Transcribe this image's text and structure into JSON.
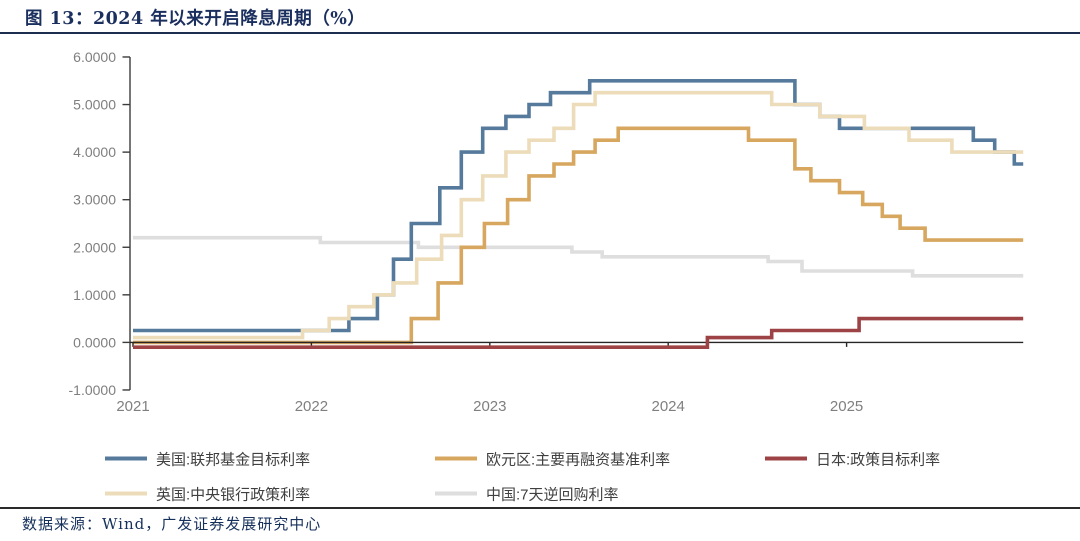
{
  "header": {
    "title": "图 13：2024 年以来开启降息周期（%）"
  },
  "footer": {
    "source": "数据来源：Wind，广发证券发展研究中心"
  },
  "chart_data": {
    "type": "line",
    "step": true,
    "title": "图 13：2024 年以来开启降息周期（%）",
    "ylabel": "",
    "xlabel": "",
    "ylim": [
      -1.0,
      6.0
    ],
    "x_range": [
      2021.0,
      2025.99
    ],
    "x_end": 2025.99,
    "grid": false,
    "legend_position": "bottom",
    "y_tick_values": [
      6,
      5,
      4,
      3,
      2,
      1,
      0,
      -1
    ],
    "y_tick_labels": [
      "6.0000",
      "5.0000",
      "4.0000",
      "3.0000",
      "2.0000",
      "1.0000",
      "0.0000",
      "-1.0000"
    ],
    "x_tick_values": [
      2021,
      2022,
      2023,
      2024,
      2025
    ],
    "x_tick_labels": [
      "2021",
      "2022",
      "2023",
      "2024",
      "2025"
    ],
    "series": [
      {
        "key": "cn",
        "name": "中国:7天逆回购利率",
        "color": "#dedede",
        "points": [
          [
            2021.0,
            2.2
          ],
          [
            2022.05,
            2.1
          ],
          [
            2022.6,
            2.0
          ],
          [
            2023.46,
            1.9
          ],
          [
            2023.63,
            1.8
          ],
          [
            2024.56,
            1.7
          ],
          [
            2024.75,
            1.5
          ],
          [
            2025.37,
            1.4
          ]
        ]
      },
      {
        "key": "us",
        "name": "美国:联邦基金目标利率",
        "color": "#567a9c",
        "points": [
          [
            2021.0,
            0.25
          ],
          [
            2022.21,
            0.5
          ],
          [
            2022.37,
            1.0
          ],
          [
            2022.46,
            1.75
          ],
          [
            2022.56,
            2.5
          ],
          [
            2022.72,
            3.25
          ],
          [
            2022.84,
            4.0
          ],
          [
            2022.96,
            4.5
          ],
          [
            2023.09,
            4.75
          ],
          [
            2023.22,
            5.0
          ],
          [
            2023.34,
            5.25
          ],
          [
            2023.56,
            5.5
          ],
          [
            2024.71,
            5.0
          ],
          [
            2024.85,
            4.75
          ],
          [
            2024.96,
            4.5
          ],
          [
            2025.71,
            4.25
          ],
          [
            2025.83,
            4.0
          ],
          [
            2025.94,
            3.75
          ]
        ]
      },
      {
        "key": "eu",
        "name": "欧元区:主要再融资基准利率",
        "color": "#d7a75f",
        "points": [
          [
            2021.0,
            0.0
          ],
          [
            2022.56,
            0.5
          ],
          [
            2022.71,
            1.25
          ],
          [
            2022.84,
            2.0
          ],
          [
            2022.97,
            2.5
          ],
          [
            2023.1,
            3.0
          ],
          [
            2023.22,
            3.5
          ],
          [
            2023.36,
            3.75
          ],
          [
            2023.47,
            4.0
          ],
          [
            2023.59,
            4.25
          ],
          [
            2023.72,
            4.5
          ],
          [
            2024.45,
            4.25
          ],
          [
            2024.71,
            3.65
          ],
          [
            2024.8,
            3.4
          ],
          [
            2024.96,
            3.15
          ],
          [
            2025.09,
            2.9
          ],
          [
            2025.2,
            2.65
          ],
          [
            2025.3,
            2.4
          ],
          [
            2025.44,
            2.15
          ]
        ]
      },
      {
        "key": "uk",
        "name": "英国:中央银行政策利率",
        "color": "#ecdcba",
        "points": [
          [
            2021.0,
            0.1
          ],
          [
            2021.95,
            0.25
          ],
          [
            2022.1,
            0.5
          ],
          [
            2022.21,
            0.75
          ],
          [
            2022.35,
            1.0
          ],
          [
            2022.46,
            1.25
          ],
          [
            2022.59,
            1.75
          ],
          [
            2022.73,
            2.25
          ],
          [
            2022.84,
            3.0
          ],
          [
            2022.96,
            3.5
          ],
          [
            2023.09,
            4.0
          ],
          [
            2023.22,
            4.25
          ],
          [
            2023.36,
            4.5
          ],
          [
            2023.47,
            5.0
          ],
          [
            2023.59,
            5.25
          ],
          [
            2024.58,
            5.0
          ],
          [
            2024.85,
            4.75
          ],
          [
            2025.1,
            4.5
          ],
          [
            2025.35,
            4.25
          ],
          [
            2025.59,
            4.0
          ]
        ]
      },
      {
        "key": "jp",
        "name": "日本:政策目标利率",
        "color": "#9d4345",
        "points": [
          [
            2021.0,
            -0.1
          ],
          [
            2024.22,
            0.1
          ],
          [
            2024.58,
            0.25
          ],
          [
            2025.07,
            0.5
          ]
        ]
      }
    ]
  },
  "legend": {
    "rows": [
      [
        {
          "key": "us",
          "label": "美国:联邦基金目标利率",
          "color": "#567a9c"
        },
        {
          "key": "eu",
          "label": "欧元区:主要再融资基准利率",
          "color": "#d7a75f"
        },
        {
          "key": "jp",
          "label": "日本:政策目标利率",
          "color": "#9d4345"
        }
      ],
      [
        {
          "key": "uk",
          "label": "英国:中央银行政策利率",
          "color": "#ecdcba"
        },
        {
          "key": "cn",
          "label": "中国:7天逆回购利率",
          "color": "#dedede"
        }
      ]
    ]
  },
  "colors": {
    "title_navy": "#1b2f5e",
    "rule_navy": "#1d2d50",
    "axis_label_gray": "#7f7f7f",
    "axis_line": "#3c3c3c",
    "us_blue": "#567a9c",
    "eu_tan": "#d7a75f",
    "jp_red": "#9d4345",
    "uk_cream": "#ecdcba",
    "cn_gray": "#dedede"
  }
}
